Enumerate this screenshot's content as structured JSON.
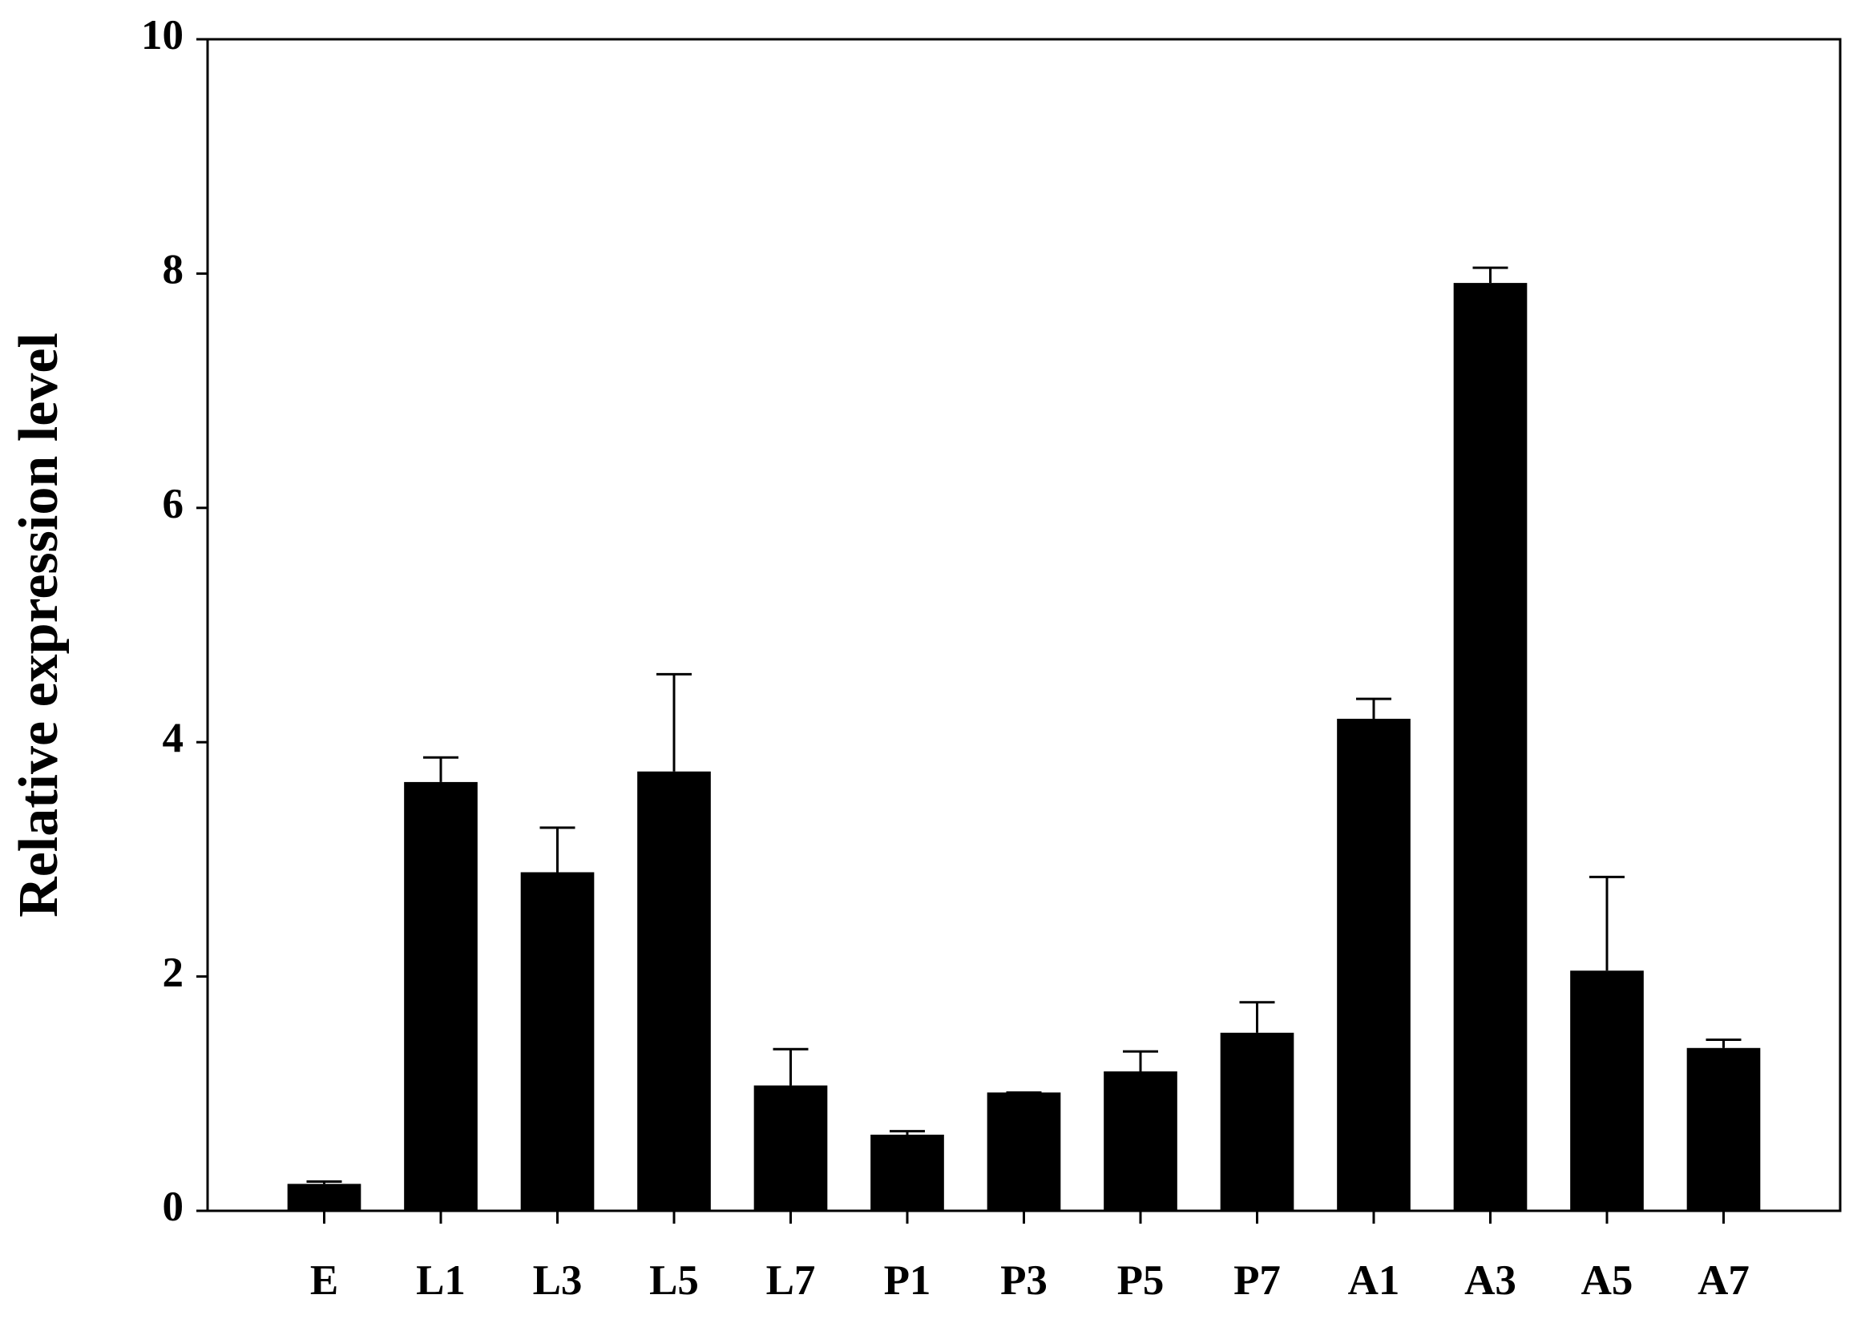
{
  "chart_data": {
    "type": "bar",
    "y_label": "Relative expression level",
    "categories": [
      "E",
      "L1",
      "L3",
      "L5",
      "L7",
      "P1",
      "P3",
      "P5",
      "P7",
      "A1",
      "A3",
      "A5",
      "A7"
    ],
    "values": [
      0.23,
      3.66,
      2.89,
      3.75,
      1.07,
      0.65,
      1.01,
      1.19,
      1.52,
      4.2,
      7.92,
      2.05,
      1.39
    ],
    "errors": [
      0.02,
      0.21,
      0.38,
      0.83,
      0.31,
      0.03,
      0,
      0.17,
      0.26,
      0.17,
      0.13,
      0.8,
      0.07
    ],
    "color": "#000000",
    "ylim": [
      0,
      10
    ],
    "yticks": [
      0,
      2,
      4,
      6,
      8,
      10
    ],
    "grid": false
  }
}
